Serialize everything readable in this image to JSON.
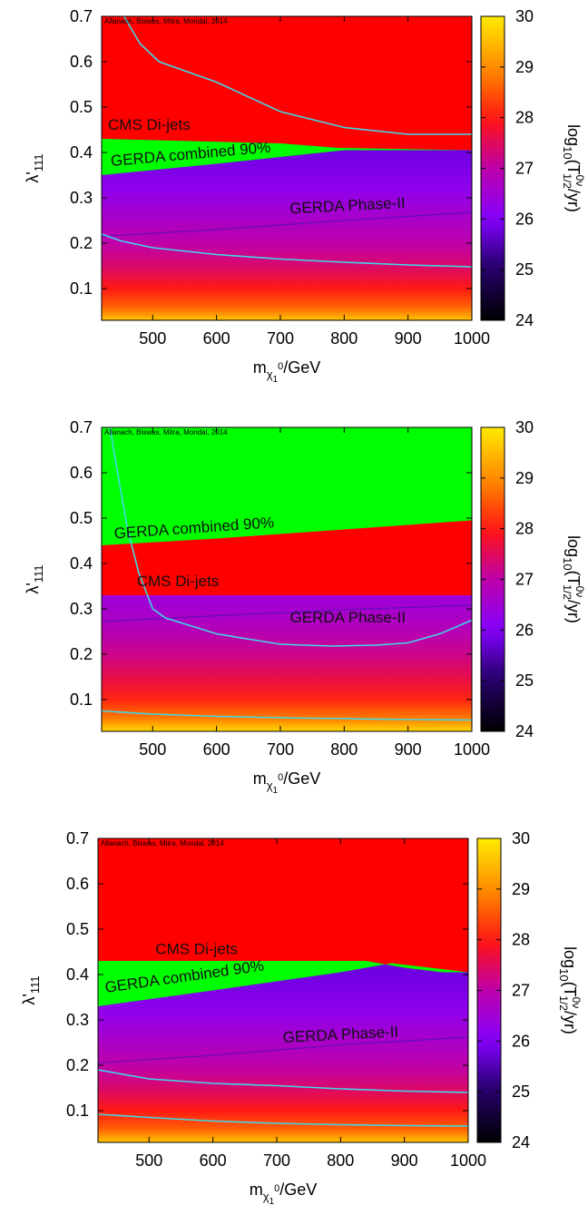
{
  "chart_data": [
    {
      "type": "heatmap",
      "credit": "Allanach, Biswas, Mitra, Mondal, 2014",
      "ylabel_text": "λ'",
      "ylabel_sub": "111",
      "xlabel_main": "m",
      "xlabel_sub": "χ",
      "xlabel_sub2": "1",
      "xlabel_sup": "0",
      "xlabel_unit": "/GeV",
      "xlim": [
        420,
        1000
      ],
      "ylim": [
        0.03,
        0.7
      ],
      "xticks": [
        500,
        600,
        700,
        800,
        900,
        1000
      ],
      "yticks": [
        0.1,
        0.2,
        0.3,
        0.4,
        0.5,
        0.6,
        0.7
      ],
      "colorbar": {
        "label_log": "log",
        "label_log_sub": "10",
        "label_T": "(T",
        "label_T_sup": "0ν",
        "label_T_sub": "1/2",
        "label_unit": "/yr)",
        "range": [
          24,
          30
        ],
        "ticks": [
          24,
          25,
          26,
          27,
          28,
          29,
          30
        ]
      },
      "background_levels": [
        {
          "y": 0.03,
          "log10_T": 29.6
        },
        {
          "y": 0.06,
          "log10_T": 28.6
        },
        {
          "y": 0.1,
          "log10_T": 28.0
        },
        {
          "y": 0.15,
          "log10_T": 27.4
        },
        {
          "y": 0.2,
          "log10_T": 27.0
        },
        {
          "y": 0.26,
          "log10_T": 26.6
        },
        {
          "y": 0.32,
          "log10_T": 26.2
        },
        {
          "y": 0.4,
          "log10_T": 25.8
        }
      ],
      "regions": {
        "cms_dijets": {
          "label": "CMS Di-jets",
          "color": "#ff0000",
          "boundary": [
            [
              420,
              0.43
            ],
            [
              700,
              0.42
            ],
            [
              790,
              0.41
            ],
            [
              1000,
              0.405
            ]
          ]
        },
        "gerda_combined": {
          "label": "GERDA combined 90%",
          "color": "#00ff00",
          "boundary": [
            [
              420,
              0.35
            ],
            [
              600,
              0.375
            ],
            [
              800,
              0.405
            ],
            [
              1000,
              0.405
            ]
          ]
        }
      },
      "contours": [
        {
          "color": "#3fd9e6",
          "points": [
            [
              455,
              0.7
            ],
            [
              480,
              0.64
            ],
            [
              510,
              0.6
            ],
            [
              600,
              0.555
            ],
            [
              700,
              0.49
            ],
            [
              800,
              0.455
            ],
            [
              900,
              0.44
            ],
            [
              1000,
              0.44
            ]
          ]
        },
        {
          "color": "#3fd9e6",
          "points": [
            [
              420,
              0.22
            ],
            [
              450,
              0.205
            ],
            [
              500,
              0.19
            ],
            [
              600,
              0.175
            ],
            [
              700,
              0.165
            ],
            [
              800,
              0.158
            ],
            [
              900,
              0.152
            ],
            [
              1000,
              0.148
            ]
          ]
        }
      ],
      "phase2": {
        "label": "GERDA Phase-II",
        "color": "#1a1aaa",
        "points": [
          [
            420,
            0.215
          ],
          [
            600,
            0.23
          ],
          [
            800,
            0.25
          ],
          [
            1000,
            0.268
          ]
        ]
      },
      "annotations": [
        {
          "text": "CMS Di-jets",
          "x": 430,
          "y": 0.45,
          "angle": 0
        },
        {
          "text": "GERDA combined 90%",
          "x": 435,
          "y": 0.37,
          "angle": -5
        },
        {
          "text": "GERDA Phase-II",
          "x": 715,
          "y": 0.265,
          "angle": -3
        }
      ]
    },
    {
      "type": "heatmap",
      "credit": "Allanach, Biswas, Mitra, Mondal, 2014",
      "ylabel_text": "λ'",
      "ylabel_sub": "111",
      "xlabel_main": "m",
      "xlabel_sub": "χ",
      "xlabel_sub2": "1",
      "xlabel_sup": "0",
      "xlabel_unit": "/GeV",
      "xlim": [
        420,
        1000
      ],
      "ylim": [
        0.03,
        0.7
      ],
      "xticks": [
        500,
        600,
        700,
        800,
        900,
        1000
      ],
      "yticks": [
        0.1,
        0.2,
        0.3,
        0.4,
        0.5,
        0.6,
        0.7
      ],
      "colorbar": {
        "label_log": "log",
        "label_log_sub": "10",
        "label_T": "(T",
        "label_T_sup": "0ν",
        "label_T_sub": "1/2",
        "label_unit": "/yr)",
        "range": [
          24,
          30
        ],
        "ticks": [
          24,
          25,
          26,
          27,
          28,
          29,
          30
        ]
      },
      "background_levels": [
        {
          "y": 0.03,
          "log10_T": 29.8
        },
        {
          "y": 0.06,
          "log10_T": 28.8
        },
        {
          "y": 0.1,
          "log10_T": 28.1
        },
        {
          "y": 0.15,
          "log10_T": 27.6
        },
        {
          "y": 0.2,
          "log10_T": 27.2
        },
        {
          "y": 0.26,
          "log10_T": 26.8
        },
        {
          "y": 0.33,
          "log10_T": 26.4
        }
      ],
      "regions": {
        "cms_dijets": {
          "label": "CMS Di-jets",
          "color": "#ff0000",
          "boundary": [
            [
              420,
              0.33
            ],
            [
              1000,
              0.33
            ]
          ]
        },
        "gerda_combined": {
          "label": "GERDA combined 90%",
          "color": "#00ff00",
          "boundary": [
            [
              420,
              0.44
            ],
            [
              600,
              0.455
            ],
            [
              800,
              0.475
            ],
            [
              1000,
              0.495
            ]
          ]
        }
      },
      "contours": [
        {
          "color": "#3fd9e6",
          "points": [
            [
              433,
              0.7
            ],
            [
              445,
              0.6
            ],
            [
              460,
              0.48
            ],
            [
              478,
              0.38
            ],
            [
              500,
              0.3
            ],
            [
              520,
              0.28
            ],
            [
              600,
              0.245
            ],
            [
              700,
              0.222
            ],
            [
              780,
              0.218
            ],
            [
              850,
              0.22
            ],
            [
              900,
              0.225
            ],
            [
              950,
              0.245
            ],
            [
              1000,
              0.275
            ]
          ]
        },
        {
          "color": "#3fd9e6",
          "points": [
            [
              420,
              0.075
            ],
            [
              500,
              0.068
            ],
            [
              600,
              0.063
            ],
            [
              700,
              0.06
            ],
            [
              800,
              0.058
            ],
            [
              900,
              0.056
            ],
            [
              1000,
              0.055
            ]
          ]
        }
      ],
      "phase2": {
        "label": "GERDA Phase-II",
        "color": "#1a1aaa",
        "points": [
          [
            420,
            0.272
          ],
          [
            600,
            0.285
          ],
          [
            800,
            0.298
          ],
          [
            1000,
            0.308
          ]
        ]
      },
      "annotations": [
        {
          "text": "GERDA combined 90%",
          "x": 440,
          "y": 0.455,
          "angle": -4
        },
        {
          "text": "CMS Di-jets",
          "x": 475,
          "y": 0.35,
          "angle": 0
        },
        {
          "text": "GERDA Phase-II",
          "x": 715,
          "y": 0.27,
          "angle": 0
        }
      ]
    },
    {
      "type": "heatmap",
      "credit": "Allanach, Biswas, Mitra, Mondal, 2014",
      "ylabel_text": "λ'",
      "ylabel_sub": "111",
      "xlabel_main": "m",
      "xlabel_sub": "χ",
      "xlabel_sub2": "1",
      "xlabel_sup": "0",
      "xlabel_unit": "/GeV",
      "xlim": [
        420,
        1000
      ],
      "ylim": [
        0.03,
        0.7
      ],
      "xticks": [
        500,
        600,
        700,
        800,
        900,
        1000
      ],
      "yticks": [
        0.1,
        0.2,
        0.3,
        0.4,
        0.5,
        0.6,
        0.7
      ],
      "colorbar": {
        "label_log": "log",
        "label_log_sub": "10",
        "label_T": "(T",
        "label_T_sup": "0ν",
        "label_T_sub": "1/2",
        "label_unit": "/yr)",
        "range": [
          24,
          30
        ],
        "ticks": [
          24,
          25,
          26,
          27,
          28,
          29,
          30
        ]
      },
      "background_levels": [
        {
          "y": 0.03,
          "log10_T": 29.6
        },
        {
          "y": 0.06,
          "log10_T": 28.6
        },
        {
          "y": 0.1,
          "log10_T": 28.0
        },
        {
          "y": 0.15,
          "log10_T": 27.4
        },
        {
          "y": 0.2,
          "log10_T": 27.0
        },
        {
          "y": 0.26,
          "log10_T": 26.6
        },
        {
          "y": 0.32,
          "log10_T": 26.2
        },
        {
          "y": 0.4,
          "log10_T": 25.8
        }
      ],
      "regions": {
        "cms_dijets": {
          "label": "CMS Di-jets",
          "color": "#ff0000",
          "boundary": [
            [
              420,
              0.43
            ],
            [
              840,
              0.43
            ],
            [
              900,
              0.415
            ],
            [
              960,
              0.405
            ],
            [
              1000,
              0.405
            ]
          ]
        },
        "gerda_combined": {
          "label": "GERDA combined 90%",
          "color": "#00ff00",
          "boundary": [
            [
              420,
              0.33
            ],
            [
              600,
              0.365
            ],
            [
              800,
              0.405
            ],
            [
              880,
              0.425
            ],
            [
              1000,
              0.405
            ]
          ]
        }
      },
      "contours": [
        {
          "color": "#3fd9e6",
          "points": [
            [
              420,
              0.19
            ],
            [
              500,
              0.17
            ],
            [
              600,
              0.16
            ],
            [
              700,
              0.155
            ],
            [
              800,
              0.148
            ],
            [
              900,
              0.143
            ],
            [
              1000,
              0.14
            ]
          ]
        },
        {
          "color": "#3fd9e6",
          "points": [
            [
              420,
              0.092
            ],
            [
              500,
              0.085
            ],
            [
              600,
              0.077
            ],
            [
              700,
              0.072
            ],
            [
              800,
              0.069
            ],
            [
              900,
              0.067
            ],
            [
              1000,
              0.066
            ]
          ]
        }
      ],
      "phase2": {
        "label": "GERDA Phase-II",
        "color": "#1a1aaa",
        "points": [
          [
            420,
            0.205
          ],
          [
            600,
            0.222
          ],
          [
            800,
            0.245
          ],
          [
            1000,
            0.262
          ]
        ]
      },
      "annotations": [
        {
          "text": "CMS Di-jets",
          "x": 510,
          "y": 0.445,
          "angle": 0
        },
        {
          "text": "GERDA combined 90%",
          "x": 432,
          "y": 0.36,
          "angle": -8
        },
        {
          "text": "GERDA Phase-II",
          "x": 710,
          "y": 0.25,
          "angle": -3
        }
      ]
    }
  ]
}
